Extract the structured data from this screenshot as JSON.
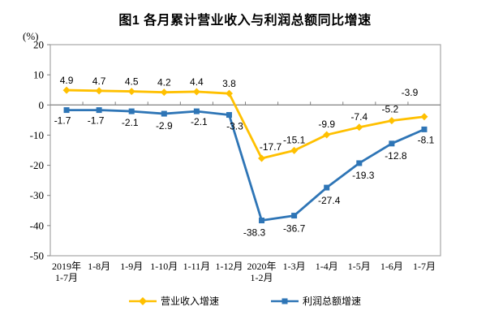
{
  "chart_data": {
    "type": "line",
    "title": "图1  各月累计营业收入与利润总额同比增速",
    "unit_label": "(%)",
    "categories": [
      "2019年\n1-7月",
      "1-8月",
      "1-9月",
      "1-10月",
      "1-11月",
      "1-12月",
      "2020年\n1-2月",
      "1-3月",
      "1-4月",
      "1-5月",
      "1-6月",
      "1-7月"
    ],
    "series": [
      {
        "name": "营业收入增速",
        "color": "#FFC000",
        "marker": "diamond",
        "values": [
          4.9,
          4.7,
          4.5,
          4.2,
          4.4,
          3.8,
          -17.7,
          -15.1,
          -9.9,
          -7.4,
          -5.2,
          -3.9
        ]
      },
      {
        "name": "利润总额增速",
        "color": "#2E75B6",
        "marker": "square",
        "values": [
          -1.7,
          -1.7,
          -2.1,
          -2.9,
          -2.1,
          -3.3,
          -38.3,
          -36.7,
          -27.4,
          -19.3,
          -12.8,
          -8.1
        ]
      }
    ],
    "y_axis": {
      "min": -50,
      "max": 20,
      "step": 10,
      "ticks": [
        "20",
        "10",
        "0",
        "-10",
        "-20",
        "-30",
        "-40",
        "-50"
      ]
    },
    "grid": false,
    "legend_position": "bottom",
    "axis_color": "#808080",
    "border_color": "#A6A6A6",
    "label_color": "#000000",
    "layout_hints": {
      "label_offsets": [
        [
          [
            0,
            -8
          ],
          [
            0,
            -8
          ],
          [
            0,
            -8
          ],
          [
            0,
            -8
          ],
          [
            0,
            -8
          ],
          [
            0,
            -8
          ],
          [
            11,
            -10
          ],
          [
            0,
            -9
          ],
          [
            0,
            -9
          ],
          [
            0,
            -9
          ],
          [
            -2,
            -10
          ],
          [
            -18,
            -26
          ]
        ],
        [
          [
            -5,
            17
          ],
          [
            -4,
            17
          ],
          [
            -2,
            18
          ],
          [
            0,
            19
          ],
          [
            3,
            17
          ],
          [
            7,
            18
          ],
          [
            -9,
            19
          ],
          [
            0,
            20
          ],
          [
            3,
            20
          ],
          [
            5,
            19
          ],
          [
            5,
            19
          ],
          [
            2,
            17
          ]
        ]
      ]
    }
  }
}
